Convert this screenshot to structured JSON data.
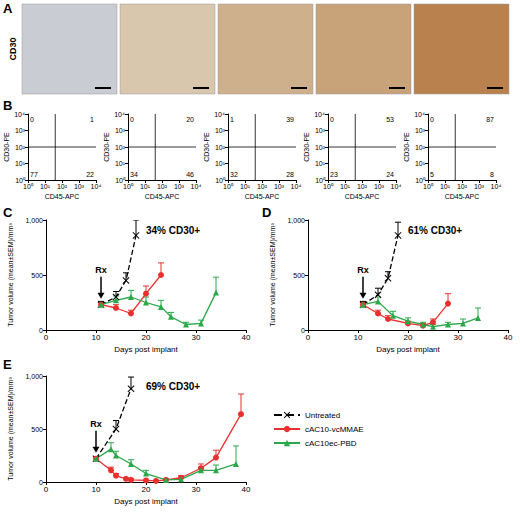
{
  "panel_a": {
    "letter": "A",
    "row_label": "CD30",
    "colors": [
      "#c9ccd3",
      "#d8c6ad",
      "#cfb08c",
      "#c8a37a",
      "#b9814e"
    ]
  },
  "panel_b": {
    "letter": "B",
    "type": "scatter",
    "x_label": "CD45-APC",
    "y_label": "CD30-PE",
    "log": true,
    "xlim": [
      1,
      10000
    ],
    "ylim": [
      1,
      10000
    ],
    "xticks": [
      {
        "value": 1,
        "label": "10⁰"
      },
      {
        "value": 10,
        "label": "10¹"
      },
      {
        "value": 100,
        "label": "10²"
      },
      {
        "value": 1000,
        "label": "10³"
      },
      {
        "value": 10000,
        "label": "10⁴"
      }
    ],
    "yticks": [
      {
        "value": 1,
        "label": "10⁰"
      },
      {
        "value": 10,
        "label": "10¹"
      },
      {
        "value": 100,
        "label": "10²"
      },
      {
        "value": 1000,
        "label": "10³"
      },
      {
        "value": 10000,
        "label": "10⁴"
      }
    ],
    "gates": {
      "x": 40,
      "y": 100
    },
    "plots": [
      {
        "quadrants": {
          "upper_left": 0,
          "upper_right": 1,
          "lower_left": 77,
          "lower_right": 22
        }
      },
      {
        "quadrants": {
          "upper_left": 0,
          "upper_right": 20,
          "lower_left": 34,
          "lower_right": 46
        }
      },
      {
        "quadrants": {
          "upper_left": 1,
          "upper_right": 39,
          "lower_left": 32,
          "lower_right": 28
        }
      },
      {
        "quadrants": {
          "upper_left": 0,
          "upper_right": 53,
          "lower_left": 23,
          "lower_right": 24
        }
      },
      {
        "quadrants": {
          "upper_left": 0,
          "upper_right": 87,
          "lower_left": 5,
          "lower_right": 8
        }
      }
    ]
  },
  "chart_data": [
    {
      "letter": "C",
      "type": "line",
      "title": "34% CD30+",
      "x_label": "Days post implant",
      "y_label": "Tumor volume (mean±SEM)/mm³",
      "xlim": [
        0,
        40
      ],
      "xticks": [
        0,
        10,
        20,
        30,
        40
      ],
      "ylim": [
        0,
        1000
      ],
      "yticks": [
        0,
        500,
        {
          "value": 1000,
          "label": "1,000"
        }
      ],
      "annotation": {
        "text": "Rx",
        "x": 11,
        "y": 230
      },
      "series": [
        {
          "color": "#000000",
          "marker": "x",
          "line_style": "dashed",
          "x": [
            11,
            14,
            16,
            18
          ],
          "values": [
            230,
            300,
            450,
            860
          ],
          "errors": [
            30,
            50,
            70,
            140
          ]
        },
        {
          "color": "#e8312f",
          "marker": "circle",
          "line_style": "solid",
          "x": [
            11,
            14,
            17,
            20,
            23
          ],
          "values": [
            230,
            200,
            150,
            330,
            500
          ],
          "errors": [
            20,
            30,
            30,
            70,
            110
          ]
        },
        {
          "color": "#2aa84a",
          "marker": "triangle",
          "line_style": "solid",
          "x": [
            11,
            14,
            17,
            20,
            23,
            25,
            28,
            31,
            34
          ],
          "values": [
            230,
            270,
            300,
            250,
            210,
            120,
            50,
            60,
            340
          ],
          "errors": [
            20,
            40,
            60,
            50,
            60,
            40,
            20,
            30,
            140
          ]
        }
      ]
    },
    {
      "letter": "D",
      "type": "line",
      "title": "61% CD30+",
      "x_label": "Days post implant",
      "y_label": "Tumor volume (mean±SEM)/mm³",
      "xlim": [
        0,
        40
      ],
      "xticks": [
        0,
        10,
        20,
        30,
        40
      ],
      "ylim": [
        0,
        1000
      ],
      "yticks": [
        0,
        500,
        {
          "value": 1000,
          "label": "1,000"
        }
      ],
      "annotation": {
        "text": "Rx",
        "x": 11,
        "y": 230
      },
      "series": [
        {
          "color": "#000000",
          "marker": "x",
          "line_style": "dashed",
          "x": [
            11,
            14,
            16,
            18
          ],
          "values": [
            230,
            320,
            470,
            860
          ],
          "errors": [
            30,
            60,
            60,
            120
          ]
        },
        {
          "color": "#e8312f",
          "marker": "circle",
          "line_style": "solid",
          "x": [
            11,
            14,
            16,
            20,
            23,
            25,
            28
          ],
          "values": [
            230,
            150,
            100,
            60,
            40,
            70,
            240
          ],
          "errors": [
            20,
            30,
            30,
            20,
            20,
            30,
            90
          ]
        },
        {
          "color": "#2aa84a",
          "marker": "triangle",
          "line_style": "solid",
          "x": [
            11,
            14,
            17,
            20,
            23,
            25,
            28,
            31,
            34
          ],
          "values": [
            230,
            260,
            130,
            80,
            50,
            30,
            50,
            60,
            110
          ],
          "errors": [
            20,
            40,
            40,
            30,
            20,
            20,
            20,
            40,
            90
          ]
        }
      ]
    },
    {
      "letter": "E",
      "type": "line",
      "title": "69% CD30+",
      "x_label": "Days post implant",
      "y_label": "Tumor volume (mean±SEM)/mm³",
      "xlim": [
        0,
        40
      ],
      "xticks": [
        0,
        10,
        20,
        30,
        40
      ],
      "ylim": [
        0,
        1000
      ],
      "yticks": [
        0,
        500,
        {
          "value": 1000,
          "label": "1,000"
        }
      ],
      "annotation": {
        "text": "Rx",
        "x": 10,
        "y": 220
      },
      "legend": "right",
      "series": [
        {
          "name": "Untreated",
          "color": "#000000",
          "marker": "x",
          "line_style": "dashed",
          "x": [
            10,
            14,
            17
          ],
          "values": [
            220,
            500,
            880
          ],
          "errors": [
            20,
            80,
            110
          ]
        },
        {
          "name": "cAC10-vcMMAE",
          "color": "#e8312f",
          "marker": "circle",
          "line_style": "solid",
          "x": [
            10,
            13,
            14,
            16,
            17,
            20,
            22,
            24,
            27,
            31,
            34,
            39
          ],
          "values": [
            220,
            110,
            60,
            30,
            20,
            15,
            10,
            20,
            40,
            130,
            230,
            640
          ],
          "errors": [
            20,
            30,
            20,
            10,
            10,
            5,
            5,
            10,
            20,
            40,
            70,
            190
          ]
        },
        {
          "name": "cAC10ec-PBD",
          "color": "#2aa84a",
          "marker": "triangle",
          "line_style": "solid",
          "x": [
            10,
            13,
            14,
            17,
            20,
            24,
            27,
            31,
            34,
            38
          ],
          "values": [
            220,
            310,
            250,
            170,
            80,
            20,
            25,
            110,
            110,
            170
          ],
          "errors": [
            20,
            60,
            40,
            40,
            30,
            10,
            10,
            30,
            50,
            170
          ]
        }
      ]
    }
  ]
}
